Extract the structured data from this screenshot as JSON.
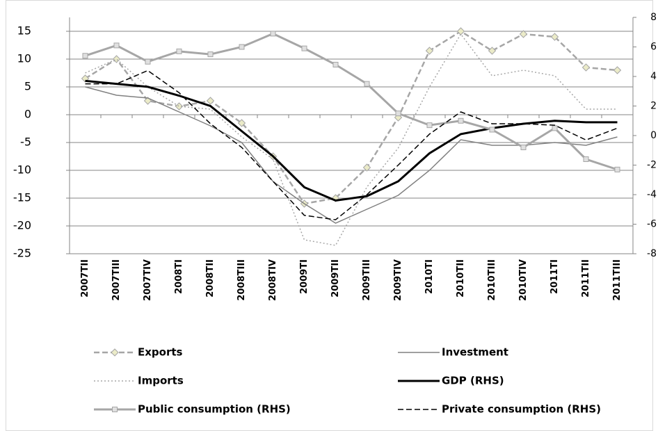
{
  "chart_data": {
    "type": "line",
    "categories": [
      "2007TII",
      "2007TIII",
      "2007TIV",
      "2008TI",
      "2008TII",
      "2008TIII",
      "2008TIV",
      "2009TI",
      "2009TII",
      "2009TIII",
      "2009TIV",
      "2010TI",
      "2010TII",
      "2010TIII",
      "2010TIV",
      "2011TI",
      "2011TII",
      "2011TIII"
    ],
    "ylim": [
      -25,
      17.5
    ],
    "yticks": [
      -25,
      -20,
      -15,
      -10,
      -5,
      0,
      5,
      10,
      15
    ],
    "y2lim": [
      -8,
      8
    ],
    "y2ticks": [
      -8,
      -6,
      -4,
      -2,
      0,
      2,
      4,
      6,
      8
    ],
    "grid": true,
    "series": [
      {
        "name": "Exports",
        "color": "#a6a6a6",
        "style": "dashed",
        "width": 2.5,
        "marker": "diamond",
        "values": [
          6.5,
          10,
          2.5,
          1.5,
          2.5,
          -1.5,
          -7.5,
          -16,
          -15,
          -9.5,
          -0.5,
          11.5,
          15,
          11.5,
          14.5,
          14,
          8.5,
          8
        ]
      },
      {
        "name": "Investment",
        "color": "#808080",
        "style": "solid",
        "width": 1.5,
        "values": [
          5,
          3.5,
          3,
          0.5,
          -2,
          -5,
          -12,
          -16,
          -19.5,
          -17,
          -14.5,
          -10,
          -4.5,
          -5.5,
          -5.5,
          -5,
          -5.5,
          -4
        ]
      },
      {
        "name": "Imports",
        "color": "#a6a6a6",
        "style": "dotted",
        "width": 1.5,
        "values": [
          7.5,
          10,
          5,
          1.5,
          1,
          -4,
          -8,
          -22.5,
          -23.5,
          -13,
          -6,
          5,
          14.5,
          7,
          8,
          7,
          1,
          1
        ]
      },
      {
        "name": "GDP (RHS)",
        "color": "#000000",
        "style": "solid",
        "width": 3,
        "axis": "y2",
        "values": [
          3.7,
          3.5,
          3.3,
          2.7,
          2,
          0.3,
          -1.4,
          -3.5,
          -4.4,
          -4.1,
          -3.1,
          -1.2,
          0.1,
          0.5,
          0.8,
          1,
          0.9,
          0.9
        ]
      },
      {
        "name": "Public consumption (RHS)",
        "color": "#a6a6a6",
        "style": "solid",
        "width": 3,
        "marker": "square",
        "axis": "y2",
        "values": [
          5.4,
          6.1,
          5,
          5.7,
          5.5,
          6,
          6.9,
          5.9,
          4.8,
          3.5,
          1.5,
          0.7,
          1,
          0.4,
          -0.8,
          0.5,
          -1.6,
          -2.3
        ]
      },
      {
        "name": "Private consumption (RHS)",
        "color": "#000000",
        "style": "dashed",
        "width": 1.5,
        "axis": "y2",
        "values": [
          3.5,
          3.5,
          4.4,
          2.9,
          0.8,
          -0.8,
          -3.1,
          -5.4,
          -5.7,
          -4,
          -2,
          0.1,
          1.6,
          0.8,
          0.8,
          0.7,
          -0.3,
          0.5
        ]
      }
    ]
  }
}
